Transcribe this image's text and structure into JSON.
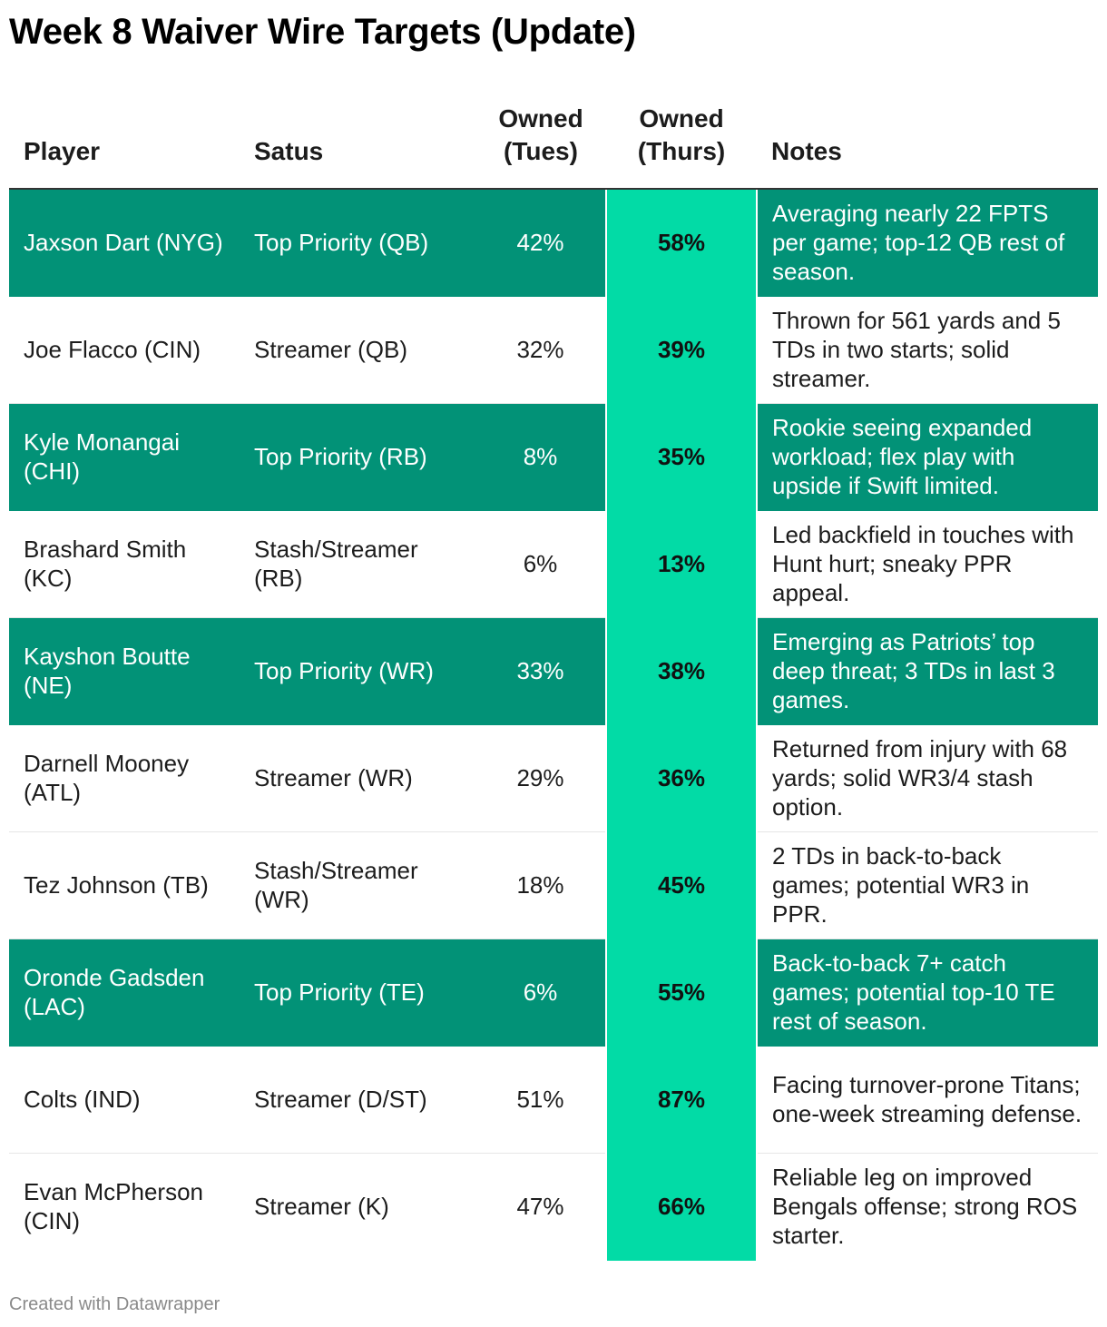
{
  "title": "Week 8 Waiver Wire Targets (Update)",
  "footer": "Created with Datawrapper",
  "colors": {
    "highlight_row": "#029277",
    "thurs_column": "#02dba6",
    "text": "#1c1c1c",
    "credit": "#8a8a8a"
  },
  "chart_data": {
    "type": "table",
    "title": "Week 8 Waiver Wire Targets (Update)",
    "columns": [
      "Player",
      "Satus",
      "Owned (Tues)",
      "Owned (Thurs)",
      "Notes"
    ],
    "rows": [
      {
        "player": "Jaxson Dart (NYG)",
        "status": "Top Priority (QB)",
        "tues": "42%",
        "thurs": "58%",
        "notes": "Averaging nearly 22 FPTS per game; top-12 QB rest of season.",
        "highlight": true
      },
      {
        "player": "Joe Flacco (CIN)",
        "status": "Streamer (QB)",
        "tues": "32%",
        "thurs": "39%",
        "notes": "Thrown for 561 yards and 5 TDs in two starts; solid streamer.",
        "highlight": false
      },
      {
        "player": "Kyle Monangai (CHI)",
        "status": "Top Priority (RB)",
        "tues": "8%",
        "thurs": "35%",
        "notes": "Rookie seeing expanded workload; flex play with upside if Swift limited.",
        "highlight": true
      },
      {
        "player": "Brashard Smith (KC)",
        "status": "Stash/Streamer (RB)",
        "tues": "6%",
        "thurs": "13%",
        "notes": "Led backfield in touches with Hunt hurt; sneaky PPR appeal.",
        "highlight": false
      },
      {
        "player": "Kayshon Boutte (NE)",
        "status": "Top Priority (WR)",
        "tues": "33%",
        "thurs": "38%",
        "notes": "Emerging as Patriots’ top deep threat; 3 TDs in last 3 games.",
        "highlight": true
      },
      {
        "player": "Darnell Mooney (ATL)",
        "status": "Streamer (WR)",
        "tues": "29%",
        "thurs": "36%",
        "notes": "Returned from injury with 68 yards; solid WR3/4 stash option.",
        "highlight": false
      },
      {
        "player": "Tez Johnson (TB)",
        "status": "Stash/Streamer (WR)",
        "tues": "18%",
        "thurs": "45%",
        "notes": "2 TDs in back-to-back games; potential WR3 in PPR.",
        "highlight": false
      },
      {
        "player": "Oronde Gadsden (LAC)",
        "status": "Top Priority (TE)",
        "tues": "6%",
        "thurs": "55%",
        "notes": "Back-to-back 7+ catch games; potential top-10 TE rest of season.",
        "highlight": true
      },
      {
        "player": "Colts (IND)",
        "status": "Streamer (D/ST)",
        "tues": "51%",
        "thurs": "87%",
        "notes": "Facing turnover-prone Titans; one-week streaming defense.",
        "highlight": false
      },
      {
        "player": "Evan McPherson (CIN)",
        "status": "Streamer (K)",
        "tues": "47%",
        "thurs": "66%",
        "notes": "Reliable leg on improved Bengals offense; strong ROS starter.",
        "highlight": false
      }
    ]
  }
}
